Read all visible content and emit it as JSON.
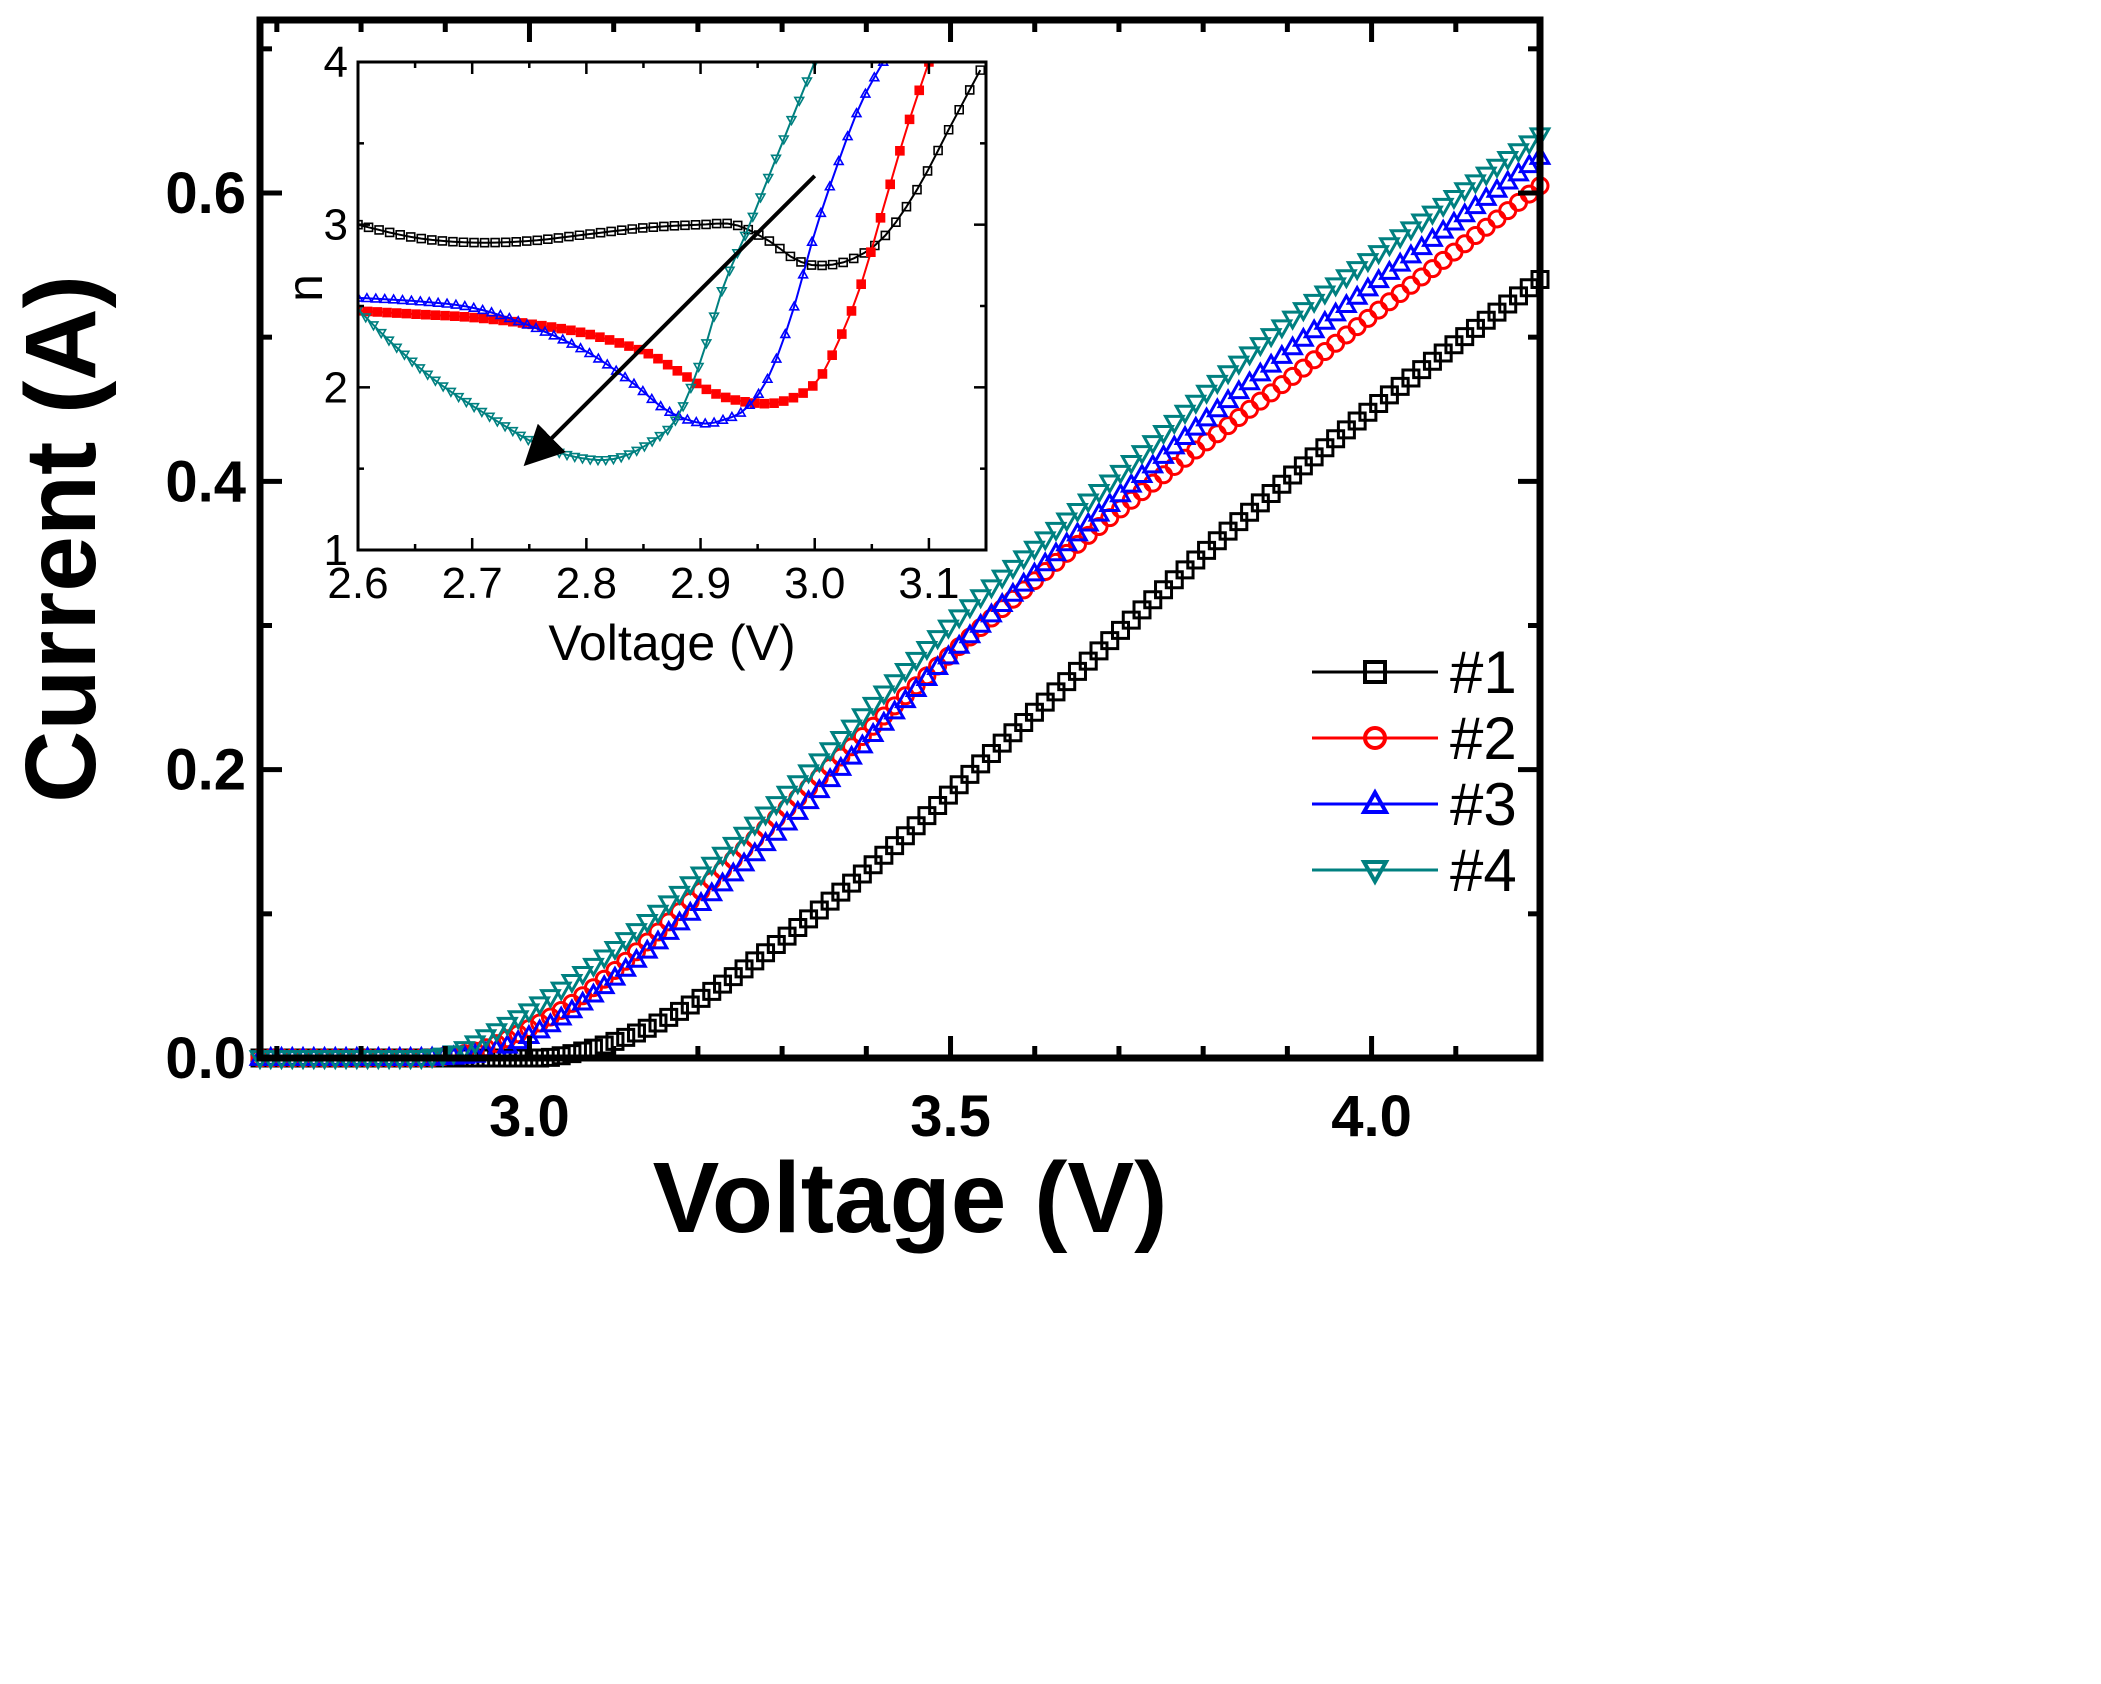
{
  "chart_data": [
    {
      "id": "main",
      "type": "scatter",
      "xlabel": "Voltage (V)",
      "ylabel": "Current (A)",
      "xlim": [
        2.68,
        4.2
      ],
      "ylim": [
        0.0,
        0.72
      ],
      "xticks": [
        3.0,
        3.5,
        4.0
      ],
      "xtick_labels": [
        "3.0",
        "3.5",
        "4.0"
      ],
      "yticks": [
        0.0,
        0.2,
        0.4,
        0.6
      ],
      "ytick_labels": [
        "0.0",
        "0.2",
        "0.4",
        "0.6"
      ],
      "legend": {
        "position": "right",
        "entries": [
          "#1",
          "#2",
          "#3",
          "#4"
        ]
      },
      "series": [
        {
          "name": "#1",
          "color": "#000000",
          "marker": "square",
          "x": [
            2.68,
            2.9,
            3.05,
            3.2,
            3.4,
            3.6,
            3.8,
            4.0,
            4.2
          ],
          "y": [
            0.0,
            0.0,
            0.003,
            0.04,
            0.13,
            0.24,
            0.35,
            0.45,
            0.54
          ]
        },
        {
          "name": "#2",
          "color": "#ff0000",
          "marker": "circle",
          "x": [
            2.68,
            2.88,
            2.98,
            3.1,
            3.3,
            3.5,
            3.7,
            3.9,
            4.2
          ],
          "y": [
            0.0,
            0.0,
            0.015,
            0.06,
            0.17,
            0.28,
            0.38,
            0.47,
            0.605
          ]
        },
        {
          "name": "#3",
          "color": "#0000ff",
          "marker": "triangle-up",
          "x": [
            2.68,
            2.88,
            2.98,
            3.1,
            3.3,
            3.5,
            3.7,
            3.9,
            4.2
          ],
          "y": [
            0.0,
            0.0,
            0.01,
            0.055,
            0.16,
            0.28,
            0.39,
            0.49,
            0.625
          ]
        },
        {
          "name": "#4",
          "color": "#008080",
          "marker": "triangle-down",
          "x": [
            2.68,
            2.87,
            2.95,
            3.1,
            3.3,
            3.5,
            3.7,
            3.9,
            4.2
          ],
          "y": [
            0.0,
            0.0,
            0.015,
            0.075,
            0.18,
            0.3,
            0.405,
            0.51,
            0.64
          ]
        }
      ]
    },
    {
      "id": "inset",
      "type": "line",
      "xlabel": "Voltage (V)",
      "ylabel": "n",
      "xlim": [
        2.6,
        3.15
      ],
      "ylim": [
        1,
        4
      ],
      "xticks": [
        2.6,
        2.7,
        2.8,
        2.9,
        3.0,
        3.1
      ],
      "xtick_labels": [
        "2.6",
        "2.7",
        "2.8",
        "2.9",
        "3.0",
        "3.1"
      ],
      "yticks": [
        1,
        2,
        3,
        4
      ],
      "ytick_labels": [
        "1",
        "2",
        "3",
        "4"
      ],
      "annotation": {
        "type": "arrow",
        "from": [
          3.0,
          3.3
        ],
        "to": [
          2.75,
          1.55
        ]
      },
      "series": [
        {
          "name": "#1",
          "color": "#000000",
          "marker": "square",
          "x": [
            2.6,
            2.65,
            2.7,
            2.75,
            2.8,
            2.85,
            2.9,
            2.93,
            2.96,
            2.98,
            3.0,
            3.03,
            3.06,
            3.09,
            3.12,
            3.145
          ],
          "y": [
            3.0,
            2.92,
            2.89,
            2.9,
            2.94,
            2.98,
            3.0,
            3.0,
            2.9,
            2.8,
            2.75,
            2.78,
            2.92,
            3.22,
            3.62,
            3.95
          ]
        },
        {
          "name": "#2",
          "color": "#ff0000",
          "marker": "filled-square",
          "x": [
            2.6,
            2.65,
            2.7,
            2.75,
            2.8,
            2.85,
            2.88,
            2.91,
            2.94,
            2.97,
            3.0,
            3.02,
            3.04,
            3.06,
            3.08,
            3.1
          ],
          "y": [
            2.47,
            2.45,
            2.43,
            2.39,
            2.33,
            2.22,
            2.1,
            1.97,
            1.91,
            1.91,
            2.02,
            2.27,
            2.62,
            3.1,
            3.58,
            4.0
          ]
        },
        {
          "name": "#3",
          "color": "#0000ff",
          "marker": "triangle-up",
          "x": [
            2.6,
            2.65,
            2.7,
            2.75,
            2.8,
            2.84,
            2.87,
            2.9,
            2.92,
            2.94,
            2.96,
            2.98,
            3.0,
            3.02,
            3.04,
            3.06
          ],
          "y": [
            2.55,
            2.53,
            2.49,
            2.38,
            2.22,
            2.03,
            1.86,
            1.78,
            1.8,
            1.87,
            2.07,
            2.45,
            2.95,
            3.37,
            3.74,
            4.0
          ]
        },
        {
          "name": "#4",
          "color": "#008080",
          "marker": "triangle-down",
          "x": [
            2.6,
            2.63,
            2.67,
            2.72,
            2.76,
            2.8,
            2.83,
            2.86,
            2.88,
            2.9,
            2.92,
            2.94,
            2.96,
            2.98,
            3.0
          ],
          "y": [
            2.48,
            2.27,
            2.03,
            1.8,
            1.64,
            1.56,
            1.57,
            1.68,
            1.82,
            2.16,
            2.62,
            2.95,
            3.3,
            3.65,
            4.0
          ]
        }
      ]
    }
  ]
}
